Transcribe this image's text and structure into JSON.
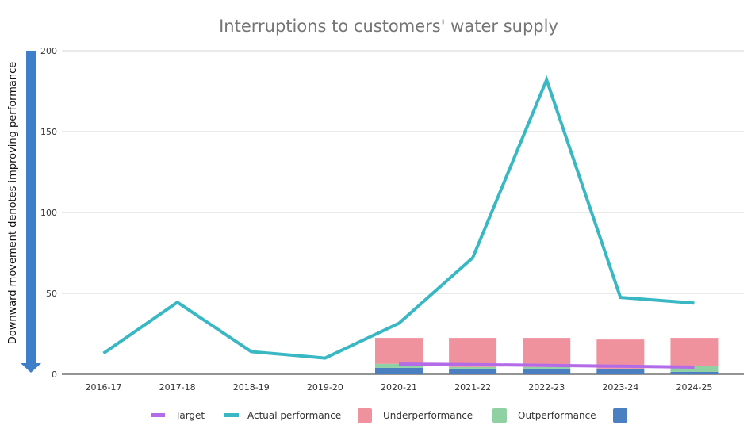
{
  "chart_data": {
    "type": "line",
    "title": "Interruptions to customers' water supply",
    "xlabel": "",
    "ylabel": "Downward movement denotes improving performance",
    "ylim": [
      0,
      200
    ],
    "yticks": [
      0,
      50,
      100,
      150,
      200
    ],
    "grid": true,
    "legend_position": "bottom",
    "categories": [
      "2016-17",
      "2017-18",
      "2018-19",
      "2019-20",
      "2020-21",
      "2021-22",
      "2022-23",
      "2023-24",
      "2024-25"
    ],
    "series": [
      {
        "name": "Target",
        "kind": "line",
        "color": "#b36be8",
        "values": [
          null,
          null,
          null,
          null,
          6.3,
          6.0,
          5.5,
          5.0,
          4.4
        ]
      },
      {
        "name": "Actual performance",
        "kind": "line",
        "color": "#39b8c4",
        "values": [
          13,
          44.5,
          14,
          10,
          31.5,
          72,
          182,
          47.5,
          44
        ]
      },
      {
        "name": "Underperformance",
        "kind": "bar",
        "color": "#f0929e",
        "values": [
          null,
          null,
          null,
          null,
          16,
          18,
          18,
          18,
          17.5
        ]
      },
      {
        "name": "Outperformance",
        "kind": "bar",
        "color": "#8fd1a3",
        "values": [
          null,
          null,
          null,
          null,
          2.5,
          1.0,
          1.0,
          0.5,
          3.5
        ]
      },
      {
        "name": "",
        "kind": "bar",
        "color": "#4a7fc1",
        "values": [
          null,
          null,
          null,
          null,
          4,
          3.5,
          3.5,
          3,
          1.5
        ]
      }
    ]
  }
}
